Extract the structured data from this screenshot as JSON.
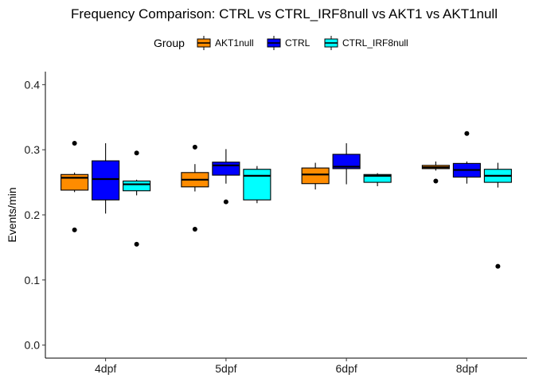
{
  "chart_data": {
    "type": "boxplot",
    "title": "Frequency Comparison: CTRL vs CTRL_IRF8null vs AKT1 vs AKT1null",
    "xlabel": "",
    "ylabel": "Events/min",
    "ylim": [
      -0.02,
      0.42
    ],
    "yticks": [
      0.0,
      0.1,
      0.2,
      0.3,
      0.4
    ],
    "ytick_labels": [
      "0.0",
      "0.1",
      "0.2",
      "0.3",
      "0.4"
    ],
    "categories": [
      "4dpf",
      "5dpf",
      "6dpf",
      "8dpf"
    ],
    "grid": false,
    "legend": {
      "title": "Group",
      "position": "top",
      "entries": [
        "AKT1null",
        "CTRL",
        "CTRL_IRF8null"
      ]
    },
    "series": [
      {
        "name": "AKT1null",
        "color": "#FF8C00",
        "boxes": [
          {
            "min": 0.235,
            "q1": 0.238,
            "median": 0.257,
            "q3": 0.262,
            "max": 0.265,
            "outliers": [
              0.31,
              0.177
            ]
          },
          {
            "min": 0.236,
            "q1": 0.243,
            "median": 0.254,
            "q3": 0.265,
            "max": 0.278,
            "outliers": [
              0.304,
              0.178
            ]
          },
          {
            "min": 0.239,
            "q1": 0.248,
            "median": 0.262,
            "q3": 0.272,
            "max": 0.28,
            "outliers": []
          },
          {
            "min": 0.268,
            "q1": 0.271,
            "median": 0.273,
            "q3": 0.276,
            "max": 0.282,
            "outliers": [
              0.252
            ]
          }
        ]
      },
      {
        "name": "CTRL",
        "color": "#0000FF",
        "boxes": [
          {
            "min": 0.202,
            "q1": 0.223,
            "median": 0.255,
            "q3": 0.283,
            "max": 0.31,
            "outliers": []
          },
          {
            "min": 0.248,
            "q1": 0.261,
            "median": 0.276,
            "q3": 0.281,
            "max": 0.301,
            "outliers": [
              0.22
            ]
          },
          {
            "min": 0.247,
            "q1": 0.271,
            "median": 0.274,
            "q3": 0.293,
            "max": 0.31,
            "outliers": []
          },
          {
            "min": 0.248,
            "q1": 0.258,
            "median": 0.269,
            "q3": 0.279,
            "max": 0.282,
            "outliers": [
              0.325
            ]
          }
        ]
      },
      {
        "name": "CTRL_IRF8null",
        "color": "#00FFFF",
        "boxes": [
          {
            "min": 0.23,
            "q1": 0.237,
            "median": 0.247,
            "q3": 0.252,
            "max": 0.254,
            "outliers": [
              0.295,
              0.155
            ]
          },
          {
            "min": 0.218,
            "q1": 0.223,
            "median": 0.26,
            "q3": 0.27,
            "max": 0.275,
            "outliers": []
          },
          {
            "min": 0.244,
            "q1": 0.25,
            "median": 0.26,
            "q3": 0.262,
            "max": 0.264,
            "outliers": []
          },
          {
            "min": 0.242,
            "q1": 0.25,
            "median": 0.26,
            "q3": 0.27,
            "max": 0.28,
            "outliers": [
              0.121
            ]
          }
        ]
      }
    ]
  }
}
